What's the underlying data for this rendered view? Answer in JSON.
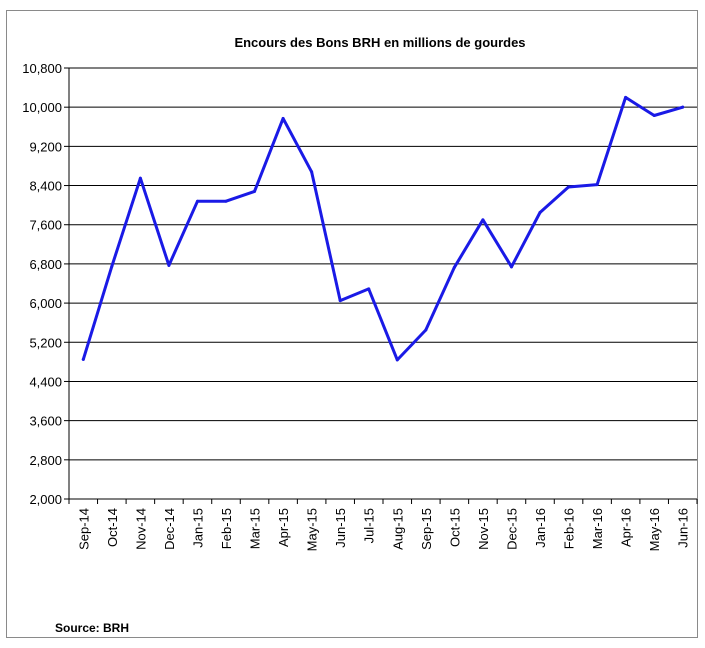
{
  "chart_data": {
    "type": "line",
    "title": "Encours des Bons BRH en millions de gourdes",
    "xlabel": "",
    "ylabel": "",
    "categories": [
      "Sep-14",
      "Oct-14",
      "Nov-14",
      "Dec-14",
      "Jan-15",
      "Feb-15",
      "Mar-15",
      "Apr-15",
      "May-15",
      "Jun-15",
      "Jul-15",
      "Aug-15",
      "Sep-15",
      "Oct-15",
      "Nov-15",
      "Dec-15",
      "Jan-16",
      "Feb-16",
      "Mar-16",
      "Apr-16",
      "May-16",
      "Jun-16"
    ],
    "series": [
      {
        "values": [
          4850,
          6750,
          8550,
          6770,
          8080,
          8080,
          8280,
          9770,
          8680,
          6050,
          6290,
          4840,
          5450,
          6730,
          7700,
          6740,
          7850,
          8370,
          8420,
          10200,
          9830,
          10000
        ]
      }
    ],
    "ylim": [
      2000,
      10800
    ],
    "yticks": [
      2000,
      2800,
      3600,
      4400,
      5200,
      6000,
      6800,
      7600,
      8400,
      9200,
      10000,
      10800
    ],
    "ytick_labels": [
      "2,000",
      "2,800",
      "3,600",
      "4,400",
      "5,200",
      "6,000",
      "6,800",
      "7,600",
      "8,400",
      "9,200",
      "10,000",
      "10,800"
    ],
    "grid": "horizontal",
    "line_color": "#1a1ae6"
  },
  "source": "Source: BRH"
}
